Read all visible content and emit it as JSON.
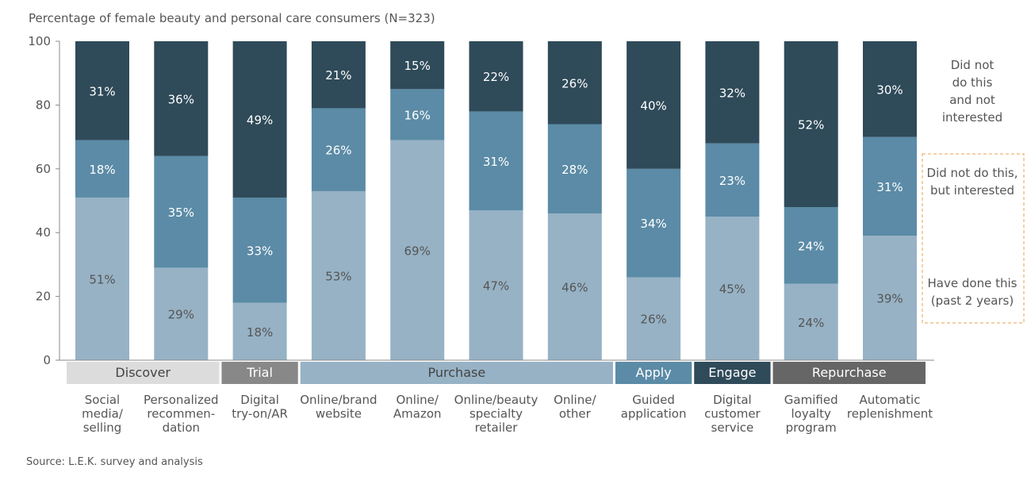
{
  "chart_data": {
    "type": "bar",
    "stacked": true,
    "title": "Percentage of female beauty and personal care consumers (N=323)",
    "source": "Source: L.E.K. survey and analysis",
    "ylim": [
      0,
      100
    ],
    "yticks": [
      "0",
      "20",
      "40",
      "60",
      "80",
      "100"
    ],
    "grid": false,
    "legend_placement": "right",
    "categories": [
      [
        "Social",
        "media/",
        "selling"
      ],
      [
        "Personalized",
        "recommen-",
        "dation"
      ],
      [
        "Digital",
        "try-on/AR"
      ],
      [
        "Online/brand",
        "website"
      ],
      [
        "Online/",
        "Amazon"
      ],
      [
        "Online/beauty",
        "specialty",
        "retailer"
      ],
      [
        "Online/",
        "other"
      ],
      [
        "Guided",
        "application"
      ],
      [
        "Digital",
        "customer",
        "service"
      ],
      [
        "Gamified",
        "loyalty",
        "program"
      ],
      [
        "Automatic",
        "replenishment"
      ]
    ],
    "series": [
      {
        "name": [
          "Have done this",
          "(past 2 years)"
        ],
        "color": "#97b2c5",
        "values": [
          51,
          29,
          18,
          53,
          69,
          47,
          46,
          26,
          45,
          24,
          39
        ]
      },
      {
        "name": [
          "Did not do this,",
          "but interested"
        ],
        "color": "#5b8ba6",
        "values": [
          18,
          35,
          33,
          26,
          16,
          31,
          28,
          34,
          23,
          24,
          31
        ]
      },
      {
        "name": [
          "Did not",
          "do this",
          "and not",
          "interested"
        ],
        "color": "#2f4a59",
        "values": [
          31,
          36,
          49,
          21,
          15,
          22,
          26,
          40,
          32,
          52,
          30
        ]
      }
    ],
    "phases": [
      {
        "label": "Discover",
        "span": [
          0,
          1
        ],
        "color": "#dcdcdc",
        "text_color": "#444444"
      },
      {
        "label": "Trial",
        "span": [
          2,
          2
        ],
        "color": "#888888",
        "text_color": "#ffffff"
      },
      {
        "label": "Purchase",
        "span": [
          3,
          6
        ],
        "color": "#97b2c5",
        "text_color": "#444444"
      },
      {
        "label": "Apply",
        "span": [
          7,
          7
        ],
        "color": "#5b8ba6",
        "text_color": "#ffffff"
      },
      {
        "label": "Engage",
        "span": [
          8,
          8
        ],
        "color": "#2f4a59",
        "text_color": "#ffffff"
      },
      {
        "label": "Repurchase",
        "span": [
          9,
          10
        ],
        "color": "#666666",
        "text_color": "#ffffff"
      }
    ],
    "legend_highlight_color": "#f0c088"
  }
}
